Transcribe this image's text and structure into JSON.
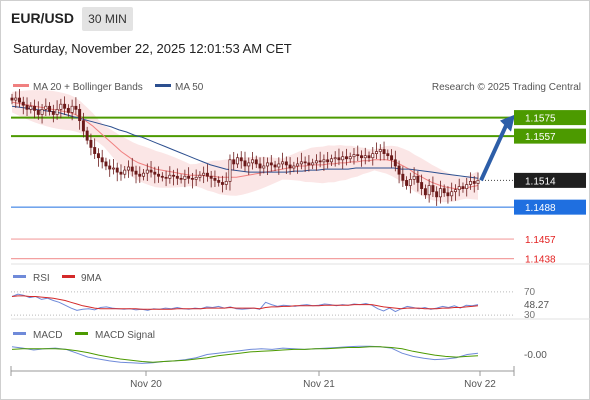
{
  "header": {
    "pair": "EUR/USD",
    "timeframe": "30 MIN",
    "datetime": "Saturday, November 22, 2025 12:01:53 AM CET"
  },
  "legend": {
    "ma20_bb": "MA 20 + Bollinger Bands",
    "ma50": "MA 50",
    "research": "Research © 2025 Trading Central"
  },
  "rsi_legend": {
    "rsi": "RSI",
    "ma9": "9MA"
  },
  "macd_legend": {
    "macd": "MACD",
    "signal": "MACD Signal"
  },
  "colors": {
    "green_level": "#4c9a00",
    "blue_level": "#1f6fe0",
    "red_level": "#e32020",
    "ma20": "#f08080",
    "ma50": "#2c4f8f",
    "band": "#fbe3e3",
    "candle": "#6b1a1a",
    "rsi": "#6f8ad9",
    "rsi_ma": "#d42a2a",
    "macd": "#6f8ad9",
    "macd_signal": "#4c9a00",
    "arrow": "#2d5ea8"
  },
  "chart_data": [
    {
      "type": "candlestick",
      "title": "EUR/USD",
      "ylim": [
        1.1425,
        1.1595
      ],
      "levels": [
        {
          "label": "1.1575",
          "value": 1.1575,
          "kind": "resistance",
          "color": "#4c9a00"
        },
        {
          "label": "1.1557",
          "value": 1.1557,
          "kind": "resistance",
          "color": "#4c9a00"
        },
        {
          "label": "1.1514",
          "value": 1.1514,
          "kind": "current",
          "color": "#333333"
        },
        {
          "label": "1.1488",
          "value": 1.1488,
          "kind": "pivot",
          "color": "#1f6fe0"
        },
        {
          "label": "1.1457",
          "value": 1.1457,
          "kind": "support",
          "color": "#e32020"
        },
        {
          "label": "1.1438",
          "value": 1.1438,
          "kind": "support",
          "color": "#e32020"
        }
      ],
      "x_ticks": [
        "Nov 20",
        "Nov 21",
        "Nov 22"
      ],
      "close": [
        1.1592,
        1.1594,
        1.159,
        1.1587,
        1.1583,
        1.1586,
        1.1582,
        1.1578,
        1.1583,
        1.1586,
        1.1581,
        1.1578,
        1.1583,
        1.1588,
        1.1584,
        1.158,
        1.1586,
        1.1583,
        1.1572,
        1.1562,
        1.1553,
        1.1546,
        1.154,
        1.1536,
        1.1532,
        1.1528,
        1.1525,
        1.1526,
        1.1522,
        1.152,
        1.1524,
        1.1527,
        1.1523,
        1.152,
        1.1518,
        1.1521,
        1.1524,
        1.1522,
        1.152,
        1.1518,
        1.1517,
        1.1516,
        1.1519,
        1.1518,
        1.1516,
        1.1515,
        1.1518,
        1.1516,
        1.1515,
        1.1517,
        1.1519,
        1.1521,
        1.1518,
        1.1516,
        1.1514,
        1.1512,
        1.151,
        1.1513,
        1.1534,
        1.153,
        1.1536,
        1.1533,
        1.1528,
        1.1531,
        1.1534,
        1.153,
        1.1526,
        1.1528,
        1.1531,
        1.1529,
        1.1527,
        1.153,
        1.1532,
        1.1529,
        1.1526,
        1.1528,
        1.153,
        1.1532,
        1.1531,
        1.1529,
        1.1531,
        1.1533,
        1.1532,
        1.1534,
        1.1532,
        1.1535,
        1.1536,
        1.1534,
        1.1537,
        1.1535,
        1.1537,
        1.1539,
        1.1538,
        1.1536,
        1.1538,
        1.1536,
        1.154,
        1.1542,
        1.1544,
        1.154,
        1.1538,
        1.1534,
        1.1528,
        1.152,
        1.1514,
        1.1509,
        1.1515,
        1.1518,
        1.1512,
        1.1506,
        1.15,
        1.1509,
        1.1503,
        1.1498,
        1.1506,
        1.1502,
        1.1499,
        1.1503,
        1.1505,
        1.1508,
        1.1506,
        1.151,
        1.1513,
        1.1511,
        1.1514
      ],
      "ma20": [
        1.159,
        1.1589,
        1.1588,
        1.1587,
        1.1586,
        1.1585,
        1.1584,
        1.1583,
        1.1582,
        1.1581,
        1.158,
        1.1578,
        1.1575,
        1.1571,
        1.1567,
        1.1562,
        1.1557,
        1.1552,
        1.1547,
        1.1542,
        1.1538,
        1.1534,
        1.1531,
        1.1529,
        1.1527,
        1.1525,
        1.1524,
        1.1523,
        1.1522,
        1.1521,
        1.152,
        1.1519,
        1.1519,
        1.1519,
        1.1518,
        1.1518,
        1.1517,
        1.1517,
        1.1517,
        1.1517,
        1.1518,
        1.1519,
        1.152,
        1.1521,
        1.1522,
        1.1523,
        1.1524,
        1.1525,
        1.1526,
        1.1527,
        1.1528,
        1.1528,
        1.1529,
        1.1529,
        1.1529,
        1.153,
        1.153,
        1.1531,
        1.1531,
        1.1532,
        1.1532,
        1.1533,
        1.1533,
        1.1534,
        1.1534,
        1.1534,
        1.1533,
        1.1531,
        1.1528,
        1.1525,
        1.1521,
        1.1518,
        1.1515,
        1.1512,
        1.151,
        1.1508,
        1.1507,
        1.1506,
        1.1506,
        1.1507,
        1.1508,
        1.1509
      ],
      "ma50": [
        1.1586,
        1.1585,
        1.1584,
        1.1583,
        1.1582,
        1.1581,
        1.158,
        1.1578,
        1.1576,
        1.1574,
        1.1572,
        1.157,
        1.1568,
        1.1566,
        1.1563,
        1.1561,
        1.1558,
        1.1556,
        1.1553,
        1.155,
        1.1547,
        1.1544,
        1.1541,
        1.1538,
        1.1535,
        1.1532,
        1.1529,
        1.1527,
        1.1525,
        1.1524,
        1.1523,
        1.1522,
        1.1522,
        1.1522,
        1.1522,
        1.1522,
        1.1522,
        1.1523,
        1.1523,
        1.1524,
        1.1524,
        1.1525,
        1.1525,
        1.1525,
        1.1525,
        1.1526,
        1.1526,
        1.1526,
        1.1526,
        1.1526,
        1.1526,
        1.1525,
        1.1525,
        1.1524,
        1.1523,
        1.1522,
        1.1521,
        1.152,
        1.1519,
        1.1518,
        1.1517,
        1.1516
      ]
    },
    {
      "type": "line",
      "title": "RSI",
      "ylim": [
        25,
        80
      ],
      "y_ticks": [
        "70",
        "30"
      ],
      "current_value": "48.27",
      "series": [
        {
          "name": "RSI",
          "values": [
            62,
            66,
            64,
            60,
            62,
            57,
            59,
            55,
            52,
            47,
            42,
            38,
            40,
            41,
            39,
            43,
            44,
            42,
            41,
            40,
            41,
            39,
            40,
            38,
            41,
            40,
            42,
            41,
            43,
            41,
            40,
            42,
            41,
            44,
            43,
            45,
            42,
            44,
            41,
            40,
            41,
            42,
            40,
            52,
            48,
            45,
            47,
            46,
            45,
            47,
            48,
            46,
            47,
            49,
            48,
            46,
            48,
            47,
            49,
            48,
            50,
            47,
            41,
            37,
            42,
            36,
            41,
            45,
            43,
            41,
            43,
            40,
            42,
            45,
            43,
            46,
            42,
            47,
            46,
            48
          ]
        },
        {
          "name": "9MA",
          "values": [
            62,
            63,
            63,
            62,
            62,
            61,
            60,
            59,
            57,
            55,
            52,
            49,
            46,
            44,
            42,
            41,
            41,
            41,
            41,
            41,
            41,
            41,
            40,
            40,
            40,
            40,
            40,
            40,
            41,
            41,
            41,
            41,
            41,
            42,
            42,
            42,
            42,
            43,
            42,
            42,
            42,
            42,
            41,
            43,
            44,
            44,
            45,
            45,
            46,
            46,
            46,
            46,
            46,
            47,
            47,
            47,
            47,
            47,
            48,
            48,
            48,
            48,
            46,
            44,
            43,
            42,
            41,
            42,
            42,
            42,
            41,
            41,
            41,
            42,
            42,
            43,
            43,
            44,
            45,
            46
          ]
        }
      ]
    },
    {
      "type": "line",
      "title": "MACD",
      "ylim": [
        -0.0024,
        0.0012
      ],
      "current_value": "-0.00",
      "series": [
        {
          "name": "MACD",
          "values": [
            0.0006,
            0.0004,
            0.0001,
            0.0003,
            0.0004,
            0.0002,
            -0.0004,
            -0.001,
            -0.0013,
            -0.0016,
            -0.0018,
            -0.0019,
            -0.002,
            -0.0019,
            -0.0017,
            -0.0016,
            -0.0014,
            -0.0011,
            -0.0006,
            -0.0004,
            -0.0002,
            0.0,
            0.0002,
            0.0003,
            0.0002,
            0.0004,
            0.0003,
            0.0002,
            0.0003,
            0.0004,
            0.0005,
            0.0006,
            0.0007,
            0.0007,
            0.0006,
            0.0004,
            -0.0004,
            -0.0009,
            -0.0012,
            -0.0014,
            -0.0013,
            -0.0011,
            -0.0006,
            -0.0004
          ]
        },
        {
          "name": "MACD Signal",
          "values": [
            0.0002,
            0.0003,
            0.0003,
            0.0003,
            0.0003,
            0.0002,
            0.0,
            -0.0003,
            -0.0007,
            -0.001,
            -0.0013,
            -0.0015,
            -0.0017,
            -0.0018,
            -0.0017,
            -0.0016,
            -0.0015,
            -0.0013,
            -0.0011,
            -0.0008,
            -0.0006,
            -0.0004,
            -0.0002,
            -0.0001,
            0.0,
            0.0001,
            0.0002,
            0.0002,
            0.0003,
            0.0003,
            0.0004,
            0.0005,
            0.0005,
            0.0006,
            0.0006,
            0.0005,
            0.0003,
            -0.0001,
            -0.0004,
            -0.0007,
            -0.0009,
            -0.001,
            -0.0009,
            -0.0008
          ]
        }
      ]
    }
  ]
}
